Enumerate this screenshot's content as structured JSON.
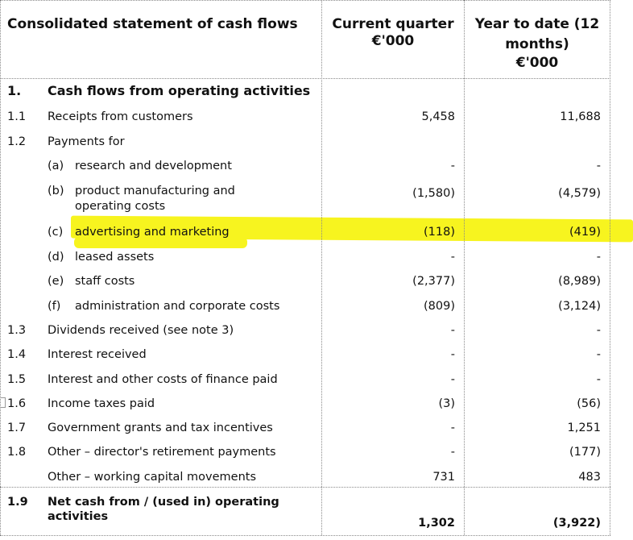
{
  "header": {
    "title": "Consolidated statement of cash flows",
    "col_current_line1": "Current quarter",
    "col_current_line2": "€'000",
    "col_ytd_line1": "Year to date (12",
    "col_ytd_line2": "months)",
    "col_ytd_line3": "€'000"
  },
  "section": {
    "number": "1.",
    "label": "Cash flows from operating activities"
  },
  "rows": [
    {
      "num": "1.1",
      "sub": "",
      "label": "Receipts from customers",
      "current": "5,458",
      "ytd": "11,688"
    },
    {
      "num": "1.2",
      "sub": "",
      "label": "Payments for",
      "current": "",
      "ytd": ""
    },
    {
      "num": "",
      "sub": "(a)",
      "label": "research and development",
      "current": "-",
      "ytd": "-"
    },
    {
      "num": "",
      "sub": "(b)",
      "label": "product manufacturing and",
      "label2": "operating costs",
      "current": "(1,580)",
      "ytd": "(4,579)"
    },
    {
      "num": "",
      "sub": "(c)",
      "label": "advertising and marketing",
      "current": "(118)",
      "ytd": "(419)"
    },
    {
      "num": "",
      "sub": "(d)",
      "label": "leased assets",
      "current": "-",
      "ytd": "-"
    },
    {
      "num": "",
      "sub": "(e)",
      "label": "staff costs",
      "current": "(2,377)",
      "ytd": "(8,989)"
    },
    {
      "num": "",
      "sub": "(f)",
      "label": "administration and corporate costs",
      "current": "(809)",
      "ytd": "(3,124)"
    },
    {
      "num": "1.3",
      "sub": "",
      "label": "Dividends received (see note 3)",
      "current": "-",
      "ytd": "-"
    },
    {
      "num": "1.4",
      "sub": "",
      "label": "Interest received",
      "current": "-",
      "ytd": "-"
    },
    {
      "num": "1.5",
      "sub": "",
      "label": "Interest and other costs of finance paid",
      "current": "-",
      "ytd": "-"
    },
    {
      "num": "1.6",
      "sub": "",
      "label": "Income taxes paid",
      "current": "(3)",
      "ytd": "(56)"
    },
    {
      "num": "1.7",
      "sub": "",
      "label": "Government grants and tax incentives",
      "current": "-",
      "ytd": "1,251"
    },
    {
      "num": "1.8",
      "sub": "",
      "label": "Other – director's retirement payments",
      "current": "-",
      "ytd": "(177)"
    },
    {
      "num": "",
      "sub": "",
      "label": "Other – working capital movements",
      "current": "731",
      "ytd": "483"
    }
  ],
  "total": {
    "num": "1.9",
    "label_line1": "Net cash from / (used in) operating",
    "label_line2": "activities",
    "current": "1,302",
    "ytd": "(3,922)"
  },
  "highlight_color": "#f7f41f"
}
